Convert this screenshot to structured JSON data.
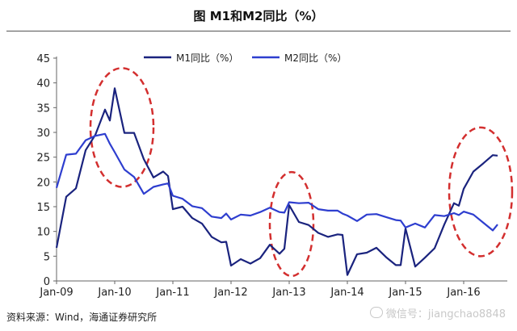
{
  "header": {
    "title": "图   M1和M2同比（%）"
  },
  "footer": {
    "source": "资料来源：Wind，海通证券研究所",
    "watermark": "微信号：jiangchao8848"
  },
  "chart_data": {
    "type": "line",
    "title": "图   M1和M2同比（%）",
    "xlabel": "",
    "ylabel": "",
    "ylim": [
      0,
      45
    ],
    "yticks": [
      0,
      5,
      10,
      15,
      20,
      25,
      30,
      35,
      40,
      45
    ],
    "xlim": [
      "2009-01",
      "2016-10"
    ],
    "xticks": [
      "Jan-09",
      "Jan-10",
      "Jan-11",
      "Jan-12",
      "Jan-13",
      "Jan-14",
      "Jan-15",
      "Jan-16"
    ],
    "grid": false,
    "legend_position": "top-center",
    "series": [
      {
        "name": "M1同比（%）",
        "color": "#1a237e",
        "points": [
          [
            "2009-01",
            6.7
          ],
          [
            "2009-03",
            17.0
          ],
          [
            "2009-05",
            18.7
          ],
          [
            "2009-07",
            26.4
          ],
          [
            "2009-09",
            29.5
          ],
          [
            "2009-11",
            34.6
          ],
          [
            "2009-12",
            32.4
          ],
          [
            "2010-01",
            38.9
          ],
          [
            "2010-03",
            29.9
          ],
          [
            "2010-05",
            29.9
          ],
          [
            "2010-07",
            24.6
          ],
          [
            "2010-09",
            20.9
          ],
          [
            "2010-11",
            22.1
          ],
          [
            "2010-12",
            21.2
          ],
          [
            "2011-01",
            14.5
          ],
          [
            "2011-03",
            15.0
          ],
          [
            "2011-05",
            12.7
          ],
          [
            "2011-07",
            11.6
          ],
          [
            "2011-09",
            8.9
          ],
          [
            "2011-11",
            7.8
          ],
          [
            "2011-12",
            7.9
          ],
          [
            "2012-01",
            3.1
          ],
          [
            "2012-03",
            4.4
          ],
          [
            "2012-05",
            3.5
          ],
          [
            "2012-07",
            4.6
          ],
          [
            "2012-09",
            7.3
          ],
          [
            "2012-11",
            5.5
          ],
          [
            "2012-12",
            6.5
          ],
          [
            "2013-01",
            15.3
          ],
          [
            "2013-03",
            11.9
          ],
          [
            "2013-05",
            11.3
          ],
          [
            "2013-07",
            9.7
          ],
          [
            "2013-09",
            8.9
          ],
          [
            "2013-11",
            9.4
          ],
          [
            "2013-12",
            9.3
          ],
          [
            "2014-01",
            1.2
          ],
          [
            "2014-03",
            5.4
          ],
          [
            "2014-05",
            5.7
          ],
          [
            "2014-07",
            6.7
          ],
          [
            "2014-09",
            4.8
          ],
          [
            "2014-11",
            3.2
          ],
          [
            "2014-12",
            3.2
          ],
          [
            "2015-01",
            10.6
          ],
          [
            "2015-03",
            2.9
          ],
          [
            "2015-05",
            4.7
          ],
          [
            "2015-07",
            6.6
          ],
          [
            "2015-09",
            11.4
          ],
          [
            "2015-11",
            15.7
          ],
          [
            "2015-12",
            15.2
          ],
          [
            "2016-01",
            18.6
          ],
          [
            "2016-03",
            22.1
          ],
          [
            "2016-05",
            23.7
          ],
          [
            "2016-07",
            25.4
          ],
          [
            "2016-08",
            25.3
          ]
        ]
      },
      {
        "name": "M2同比（%）",
        "color": "#2e3ecf",
        "points": [
          [
            "2009-01",
            18.8
          ],
          [
            "2009-03",
            25.5
          ],
          [
            "2009-05",
            25.7
          ],
          [
            "2009-07",
            28.4
          ],
          [
            "2009-09",
            29.3
          ],
          [
            "2009-11",
            29.7
          ],
          [
            "2009-12",
            27.7
          ],
          [
            "2010-01",
            26.0
          ],
          [
            "2010-03",
            22.5
          ],
          [
            "2010-05",
            21.0
          ],
          [
            "2010-07",
            17.6
          ],
          [
            "2010-09",
            19.0
          ],
          [
            "2010-11",
            19.5
          ],
          [
            "2010-12",
            19.7
          ],
          [
            "2011-01",
            17.2
          ],
          [
            "2011-03",
            16.6
          ],
          [
            "2011-05",
            15.1
          ],
          [
            "2011-07",
            14.7
          ],
          [
            "2011-09",
            13.0
          ],
          [
            "2011-11",
            12.7
          ],
          [
            "2011-12",
            13.6
          ],
          [
            "2012-01",
            12.4
          ],
          [
            "2012-03",
            13.4
          ],
          [
            "2012-05",
            13.2
          ],
          [
            "2012-07",
            13.9
          ],
          [
            "2012-09",
            14.8
          ],
          [
            "2012-11",
            13.9
          ],
          [
            "2012-12",
            13.8
          ],
          [
            "2013-01",
            15.9
          ],
          [
            "2013-03",
            15.7
          ],
          [
            "2013-05",
            15.8
          ],
          [
            "2013-07",
            14.5
          ],
          [
            "2013-09",
            14.2
          ],
          [
            "2013-11",
            14.2
          ],
          [
            "2013-12",
            13.6
          ],
          [
            "2014-01",
            13.2
          ],
          [
            "2014-03",
            12.1
          ],
          [
            "2014-05",
            13.4
          ],
          [
            "2014-07",
            13.5
          ],
          [
            "2014-09",
            12.9
          ],
          [
            "2014-11",
            12.3
          ],
          [
            "2014-12",
            12.2
          ],
          [
            "2015-01",
            10.8
          ],
          [
            "2015-03",
            11.6
          ],
          [
            "2015-05",
            10.8
          ],
          [
            "2015-07",
            13.3
          ],
          [
            "2015-09",
            13.1
          ],
          [
            "2015-11",
            13.7
          ],
          [
            "2015-12",
            13.3
          ],
          [
            "2016-01",
            14.0
          ],
          [
            "2016-03",
            13.4
          ],
          [
            "2016-05",
            11.8
          ],
          [
            "2016-07",
            10.2
          ],
          [
            "2016-08",
            11.4
          ]
        ]
      }
    ],
    "highlights": [
      {
        "from": "2009-08",
        "to": "2010-09",
        "y_from": 19,
        "y_to": 43
      },
      {
        "from": "2012-09",
        "to": "2013-06",
        "y_from": 1,
        "y_to": 22
      },
      {
        "from": "2015-10",
        "to": "2016-11",
        "y_from": 5,
        "y_to": 31
      }
    ]
  }
}
